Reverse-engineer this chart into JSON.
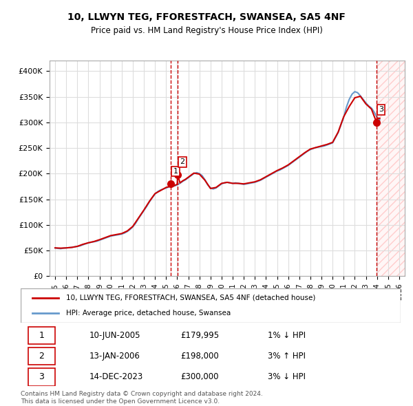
{
  "title": "10, LLWYN TEG, FFORESTFACH, SWANSEA, SA5 4NF",
  "subtitle": "Price paid vs. HM Land Registry's House Price Index (HPI)",
  "legend_line1": "10, LLWYN TEG, FFORESTFACH, SWANSEA, SA5 4NF (detached house)",
  "legend_line2": "HPI: Average price, detached house, Swansea",
  "footer1": "Contains HM Land Registry data © Crown copyright and database right 2024.",
  "footer2": "This data is licensed under the Open Government Licence v3.0.",
  "transactions": [
    {
      "label": "1",
      "date": "10-JUN-2005",
      "price": 179995,
      "pct": "1% ↓ HPI",
      "x": 2005.44
    },
    {
      "label": "2",
      "date": "13-JAN-2006",
      "price": 198000,
      "pct": "3% ↑ HPI",
      "x": 2006.04
    },
    {
      "label": "3",
      "date": "14-DEC-2023",
      "price": 300000,
      "pct": "3% ↓ HPI",
      "x": 2023.96
    }
  ],
  "sale_marker_color": "#cc0000",
  "hpi_line_color": "#6699cc",
  "property_line_color": "#cc0000",
  "dashed_line_color": "#cc0000",
  "hatch_color": "#ffcccc",
  "background_color": "#ffffff",
  "grid_color": "#dddddd",
  "xlim": [
    1994.5,
    2026.5
  ],
  "ylim": [
    0,
    420000
  ],
  "yticks": [
    0,
    50000,
    100000,
    150000,
    200000,
    250000,
    300000,
    350000,
    400000
  ],
  "xticks": [
    1995,
    1996,
    1997,
    1998,
    1999,
    2000,
    2001,
    2002,
    2003,
    2004,
    2005,
    2006,
    2007,
    2008,
    2009,
    2010,
    2011,
    2012,
    2013,
    2014,
    2015,
    2016,
    2017,
    2018,
    2019,
    2020,
    2021,
    2022,
    2023,
    2024,
    2025,
    2026
  ],
  "hpi_data": {
    "years": [
      1995.0,
      1995.25,
      1995.5,
      1995.75,
      1996.0,
      1996.25,
      1996.5,
      1996.75,
      1997.0,
      1997.25,
      1997.5,
      1997.75,
      1998.0,
      1998.25,
      1998.5,
      1998.75,
      1999.0,
      1999.25,
      1999.5,
      1999.75,
      2000.0,
      2000.25,
      2000.5,
      2000.75,
      2001.0,
      2001.25,
      2001.5,
      2001.75,
      2002.0,
      2002.25,
      2002.5,
      2002.75,
      2003.0,
      2003.25,
      2003.5,
      2003.75,
      2004.0,
      2004.25,
      2004.5,
      2004.75,
      2005.0,
      2005.25,
      2005.5,
      2005.75,
      2006.0,
      2006.25,
      2006.5,
      2006.75,
      2007.0,
      2007.25,
      2007.5,
      2007.75,
      2008.0,
      2008.25,
      2008.5,
      2008.75,
      2009.0,
      2009.25,
      2009.5,
      2009.75,
      2010.0,
      2010.25,
      2010.5,
      2010.75,
      2011.0,
      2011.25,
      2011.5,
      2011.75,
      2012.0,
      2012.25,
      2012.5,
      2012.75,
      2013.0,
      2013.25,
      2013.5,
      2013.75,
      2014.0,
      2014.25,
      2014.5,
      2014.75,
      2015.0,
      2015.25,
      2015.5,
      2015.75,
      2016.0,
      2016.25,
      2016.5,
      2016.75,
      2017.0,
      2017.25,
      2017.5,
      2017.75,
      2018.0,
      2018.25,
      2018.5,
      2018.75,
      2019.0,
      2019.25,
      2019.5,
      2019.75,
      2020.0,
      2020.25,
      2020.5,
      2020.75,
      2021.0,
      2021.25,
      2021.5,
      2021.75,
      2022.0,
      2022.25,
      2022.5,
      2022.75,
      2023.0,
      2023.25,
      2023.5,
      2023.75,
      2024.0,
      2024.25
    ],
    "values": [
      55000,
      54000,
      53500,
      54500,
      55000,
      55500,
      56000,
      57000,
      58000,
      59000,
      61000,
      63000,
      65000,
      66000,
      67000,
      68000,
      70000,
      72000,
      74000,
      76000,
      78000,
      79000,
      80000,
      81000,
      82000,
      84000,
      87000,
      91000,
      96000,
      103000,
      112000,
      120000,
      128000,
      136000,
      145000,
      153000,
      160000,
      165000,
      168000,
      170000,
      172000,
      174000,
      175000,
      176000,
      178000,
      181000,
      185000,
      188000,
      192000,
      196000,
      200000,
      202000,
      200000,
      196000,
      188000,
      178000,
      172000,
      170000,
      172000,
      176000,
      180000,
      182000,
      183000,
      182000,
      181000,
      182000,
      181000,
      180000,
      179000,
      180000,
      181000,
      182000,
      183000,
      185000,
      187000,
      190000,
      193000,
      196000,
      199000,
      202000,
      205000,
      207000,
      210000,
      213000,
      216000,
      220000,
      224000,
      228000,
      232000,
      236000,
      240000,
      244000,
      247000,
      249000,
      251000,
      252000,
      253000,
      254000,
      256000,
      258000,
      260000,
      270000,
      280000,
      295000,
      310000,
      330000,
      345000,
      355000,
      360000,
      358000,
      352000,
      345000,
      338000,
      332000,
      328000,
      320000,
      310000,
      305000
    ]
  },
  "property_data": {
    "years": [
      1995.0,
      1995.5,
      1996.0,
      1996.5,
      1997.0,
      1997.5,
      1998.0,
      1998.5,
      1999.0,
      1999.5,
      2000.0,
      2000.5,
      2001.0,
      2001.5,
      2002.0,
      2002.5,
      2003.0,
      2003.5,
      2004.0,
      2004.5,
      2005.0,
      2005.25,
      2005.44,
      2005.5,
      2005.75,
      2006.0,
      2006.04,
      2006.25,
      2006.5,
      2006.75,
      2007.0,
      2007.5,
      2008.0,
      2008.5,
      2009.0,
      2009.5,
      2010.0,
      2010.5,
      2011.0,
      2011.5,
      2012.0,
      2012.5,
      2013.0,
      2013.5,
      2014.0,
      2014.5,
      2015.0,
      2015.5,
      2016.0,
      2016.5,
      2017.0,
      2017.5,
      2018.0,
      2018.5,
      2019.0,
      2019.5,
      2020.0,
      2020.5,
      2021.0,
      2021.5,
      2022.0,
      2022.5,
      2023.0,
      2023.5,
      2023.96,
      2024.0,
      2024.25
    ],
    "values": [
      55000,
      54500,
      55000,
      56000,
      58000,
      62000,
      65000,
      67500,
      71000,
      75000,
      79000,
      81000,
      83000,
      88000,
      97000,
      113000,
      129000,
      146000,
      161000,
      167000,
      173000,
      174500,
      179995,
      175500,
      176500,
      179500,
      198000,
      182000,
      186000,
      189000,
      193000,
      201000,
      199000,
      187000,
      171000,
      173000,
      181000,
      183000,
      181000,
      181000,
      180000,
      182000,
      184000,
      188000,
      194000,
      200000,
      206000,
      211000,
      217000,
      225000,
      233000,
      241000,
      248000,
      251000,
      254000,
      257000,
      261000,
      281000,
      311000,
      331000,
      348000,
      351000,
      336000,
      326000,
      300000,
      308000,
      308000
    ]
  }
}
